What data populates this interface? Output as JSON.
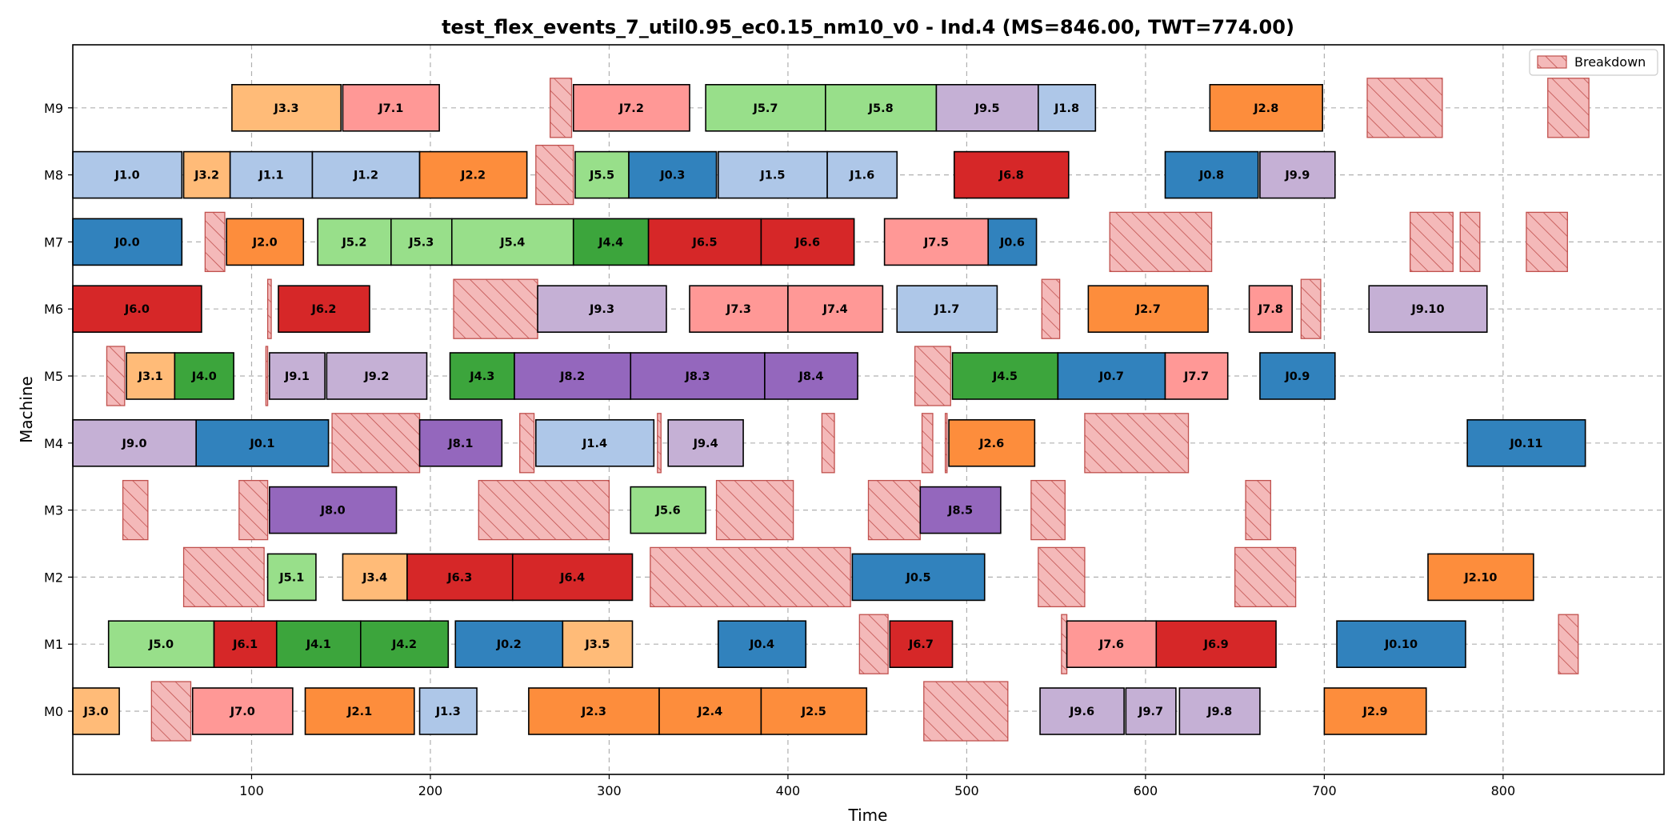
{
  "chart_data": {
    "type": "gantt",
    "title": "test_flex_events_7_util0.95_ec0.15_nm10_v0 - Ind.4 (MS=846.00, TWT=774.00)",
    "xlabel": "Time",
    "ylabel": "Machine",
    "xlim": [
      0,
      890
    ],
    "x_ticks": [
      100,
      200,
      300,
      400,
      500,
      600,
      700,
      800
    ],
    "machines": [
      "M0",
      "M1",
      "M2",
      "M3",
      "M4",
      "M5",
      "M6",
      "M7",
      "M8",
      "M9"
    ],
    "grid": true,
    "legend": {
      "position": "upper-right",
      "entries": [
        "Breakdown"
      ]
    },
    "job_colors": {
      "J0": "#3182bd",
      "J1": "#aec7e8",
      "J2": "#fd8d3c",
      "J3": "#ffbb78",
      "J4": "#3ca53c",
      "J5": "#98df8a",
      "J6": "#d62728",
      "J7": "#ff9896",
      "J8": "#9467bd",
      "J9": "#c5b0d5"
    },
    "breakdown_color": "#f4b9b9",
    "breakdown_edge": "#c0504d",
    "operations": [
      {
        "m": 0,
        "label": "J3.0",
        "start": 0,
        "end": 26
      },
      {
        "m": 0,
        "label": "J7.0",
        "start": 67,
        "end": 123
      },
      {
        "m": 0,
        "label": "J2.1",
        "start": 130,
        "end": 191
      },
      {
        "m": 0,
        "label": "J1.3",
        "start": 194,
        "end": 226
      },
      {
        "m": 0,
        "label": "J2.3",
        "start": 255,
        "end": 328
      },
      {
        "m": 0,
        "label": "J2.4",
        "start": 328,
        "end": 385
      },
      {
        "m": 0,
        "label": "J2.5",
        "start": 385,
        "end": 444
      },
      {
        "m": 0,
        "label": "J9.6",
        "start": 541,
        "end": 588
      },
      {
        "m": 0,
        "label": "J9.7",
        "start": 589,
        "end": 617
      },
      {
        "m": 0,
        "label": "J9.8",
        "start": 619,
        "end": 664
      },
      {
        "m": 0,
        "label": "J2.9",
        "start": 700,
        "end": 757
      },
      {
        "m": 1,
        "label": "J5.0",
        "start": 20,
        "end": 79
      },
      {
        "m": 1,
        "label": "J6.1",
        "start": 79,
        "end": 114
      },
      {
        "m": 1,
        "label": "J4.1",
        "start": 114,
        "end": 161
      },
      {
        "m": 1,
        "label": "J4.2",
        "start": 161,
        "end": 210
      },
      {
        "m": 1,
        "label": "J0.2",
        "start": 214,
        "end": 274
      },
      {
        "m": 1,
        "label": "J3.5",
        "start": 274,
        "end": 313
      },
      {
        "m": 1,
        "label": "J0.4",
        "start": 361,
        "end": 410
      },
      {
        "m": 1,
        "label": "J6.7",
        "start": 457,
        "end": 492
      },
      {
        "m": 1,
        "label": "J7.6",
        "start": 556,
        "end": 606
      },
      {
        "m": 1,
        "label": "J6.9",
        "start": 606,
        "end": 673
      },
      {
        "m": 1,
        "label": "J0.10",
        "start": 707,
        "end": 779
      },
      {
        "m": 2,
        "label": "J5.1",
        "start": 109,
        "end": 136
      },
      {
        "m": 2,
        "label": "J3.4",
        "start": 151,
        "end": 187
      },
      {
        "m": 2,
        "label": "J6.3",
        "start": 187,
        "end": 246
      },
      {
        "m": 2,
        "label": "J6.4",
        "start": 246,
        "end": 313
      },
      {
        "m": 2,
        "label": "J0.5",
        "start": 436,
        "end": 510
      },
      {
        "m": 2,
        "label": "J2.10",
        "start": 758,
        "end": 817
      },
      {
        "m": 3,
        "label": "J8.0",
        "start": 110,
        "end": 181
      },
      {
        "m": 3,
        "label": "J5.6",
        "start": 312,
        "end": 354
      },
      {
        "m": 3,
        "label": "J8.5",
        "start": 474,
        "end": 519
      },
      {
        "m": 4,
        "label": "J9.0",
        "start": 0,
        "end": 69
      },
      {
        "m": 4,
        "label": "J0.1",
        "start": 69,
        "end": 143
      },
      {
        "m": 4,
        "label": "J8.1",
        "start": 194,
        "end": 240
      },
      {
        "m": 4,
        "label": "J1.4",
        "start": 259,
        "end": 325
      },
      {
        "m": 4,
        "label": "J9.4",
        "start": 333,
        "end": 375
      },
      {
        "m": 4,
        "label": "J2.6",
        "start": 490,
        "end": 538
      },
      {
        "m": 4,
        "label": "J0.11",
        "start": 780,
        "end": 846
      },
      {
        "m": 5,
        "label": "J3.1",
        "start": 30,
        "end": 57
      },
      {
        "m": 5,
        "label": "J4.0",
        "start": 57,
        "end": 90
      },
      {
        "m": 5,
        "label": "J9.1",
        "start": 110,
        "end": 141
      },
      {
        "m": 5,
        "label": "J9.2",
        "start": 142,
        "end": 198
      },
      {
        "m": 5,
        "label": "J4.3",
        "start": 211,
        "end": 247
      },
      {
        "m": 5,
        "label": "J8.2",
        "start": 247,
        "end": 312
      },
      {
        "m": 5,
        "label": "J8.3",
        "start": 312,
        "end": 387
      },
      {
        "m": 5,
        "label": "J8.4",
        "start": 387,
        "end": 439
      },
      {
        "m": 5,
        "label": "J4.5",
        "start": 492,
        "end": 551
      },
      {
        "m": 5,
        "label": "J0.7",
        "start": 551,
        "end": 611
      },
      {
        "m": 5,
        "label": "J7.7",
        "start": 611,
        "end": 646
      },
      {
        "m": 5,
        "label": "J0.9",
        "start": 664,
        "end": 706
      },
      {
        "m": 6,
        "label": "J6.0",
        "start": 0,
        "end": 72
      },
      {
        "m": 6,
        "label": "J6.2",
        "start": 115,
        "end": 166
      },
      {
        "m": 6,
        "label": "J9.3",
        "start": 260,
        "end": 332
      },
      {
        "m": 6,
        "label": "J7.3",
        "start": 345,
        "end": 400
      },
      {
        "m": 6,
        "label": "J7.4",
        "start": 400,
        "end": 453
      },
      {
        "m": 6,
        "label": "J1.7",
        "start": 461,
        "end": 517
      },
      {
        "m": 6,
        "label": "J2.7",
        "start": 568,
        "end": 635
      },
      {
        "m": 6,
        "label": "J7.8",
        "start": 658,
        "end": 682
      },
      {
        "m": 6,
        "label": "J9.10",
        "start": 725,
        "end": 791
      },
      {
        "m": 7,
        "label": "J0.0",
        "start": 0,
        "end": 61
      },
      {
        "m": 7,
        "label": "J2.0",
        "start": 86,
        "end": 129
      },
      {
        "m": 7,
        "label": "J5.2",
        "start": 137,
        "end": 178
      },
      {
        "m": 7,
        "label": "J5.3",
        "start": 178,
        "end": 212
      },
      {
        "m": 7,
        "label": "J5.4",
        "start": 212,
        "end": 280
      },
      {
        "m": 7,
        "label": "J4.4",
        "start": 280,
        "end": 322
      },
      {
        "m": 7,
        "label": "J6.5",
        "start": 322,
        "end": 385
      },
      {
        "m": 7,
        "label": "J6.6",
        "start": 385,
        "end": 437
      },
      {
        "m": 7,
        "label": "J7.5",
        "start": 454,
        "end": 512
      },
      {
        "m": 7,
        "label": "J0.6",
        "start": 512,
        "end": 539
      },
      {
        "m": 8,
        "label": "J1.0",
        "start": 0,
        "end": 61
      },
      {
        "m": 8,
        "label": "J3.2",
        "start": 62,
        "end": 88
      },
      {
        "m": 8,
        "label": "J1.1",
        "start": 88,
        "end": 134
      },
      {
        "m": 8,
        "label": "J1.2",
        "start": 134,
        "end": 194
      },
      {
        "m": 8,
        "label": "J2.2",
        "start": 194,
        "end": 254
      },
      {
        "m": 8,
        "label": "J5.5",
        "start": 281,
        "end": 311
      },
      {
        "m": 8,
        "label": "J0.3",
        "start": 311,
        "end": 360
      },
      {
        "m": 8,
        "label": "J1.5",
        "start": 361,
        "end": 422
      },
      {
        "m": 8,
        "label": "J1.6",
        "start": 422,
        "end": 461
      },
      {
        "m": 8,
        "label": "J6.8",
        "start": 493,
        "end": 557
      },
      {
        "m": 8,
        "label": "J0.8",
        "start": 611,
        "end": 663
      },
      {
        "m": 8,
        "label": "J9.9",
        "start": 664,
        "end": 706
      },
      {
        "m": 9,
        "label": "J3.3",
        "start": 89,
        "end": 150
      },
      {
        "m": 9,
        "label": "J7.1",
        "start": 151,
        "end": 205
      },
      {
        "m": 9,
        "label": "J7.2",
        "start": 280,
        "end": 345
      },
      {
        "m": 9,
        "label": "J5.7",
        "start": 354,
        "end": 421
      },
      {
        "m": 9,
        "label": "J5.8",
        "start": 421,
        "end": 483
      },
      {
        "m": 9,
        "label": "J9.5",
        "start": 483,
        "end": 540
      },
      {
        "m": 9,
        "label": "J1.8",
        "start": 540,
        "end": 572
      },
      {
        "m": 9,
        "label": "J2.8",
        "start": 636,
        "end": 699
      }
    ],
    "breakdowns": [
      {
        "m": 0,
        "start": 44,
        "end": 66
      },
      {
        "m": 0,
        "start": 476,
        "end": 523
      },
      {
        "m": 1,
        "start": 440,
        "end": 456
      },
      {
        "m": 1,
        "start": 553,
        "end": 556
      },
      {
        "m": 1,
        "start": 831,
        "end": 842
      },
      {
        "m": 2,
        "start": 62,
        "end": 107
      },
      {
        "m": 2,
        "start": 323,
        "end": 435
      },
      {
        "m": 2,
        "start": 540,
        "end": 566
      },
      {
        "m": 2,
        "start": 650,
        "end": 684
      },
      {
        "m": 3,
        "start": 28,
        "end": 42
      },
      {
        "m": 3,
        "start": 93,
        "end": 109
      },
      {
        "m": 3,
        "start": 227,
        "end": 300
      },
      {
        "m": 3,
        "start": 360,
        "end": 403
      },
      {
        "m": 3,
        "start": 445,
        "end": 474
      },
      {
        "m": 3,
        "start": 536,
        "end": 555
      },
      {
        "m": 3,
        "start": 656,
        "end": 670
      },
      {
        "m": 4,
        "start": 145,
        "end": 194
      },
      {
        "m": 4,
        "start": 250,
        "end": 258
      },
      {
        "m": 4,
        "start": 327,
        "end": 329
      },
      {
        "m": 4,
        "start": 419,
        "end": 426
      },
      {
        "m": 4,
        "start": 475,
        "end": 481
      },
      {
        "m": 4,
        "start": 488,
        "end": 489
      },
      {
        "m": 4,
        "start": 566,
        "end": 624
      },
      {
        "m": 5,
        "start": 19,
        "end": 29
      },
      {
        "m": 5,
        "start": 108,
        "end": 109
      },
      {
        "m": 5,
        "start": 471,
        "end": 491
      },
      {
        "m": 6,
        "start": 109,
        "end": 111
      },
      {
        "m": 6,
        "start": 213,
        "end": 260
      },
      {
        "m": 6,
        "start": 542,
        "end": 552
      },
      {
        "m": 6,
        "start": 687,
        "end": 698
      },
      {
        "m": 7,
        "start": 74,
        "end": 85
      },
      {
        "m": 7,
        "start": 580,
        "end": 637
      },
      {
        "m": 7,
        "start": 748,
        "end": 772
      },
      {
        "m": 7,
        "start": 776,
        "end": 787
      },
      {
        "m": 7,
        "start": 813,
        "end": 836
      },
      {
        "m": 8,
        "start": 259,
        "end": 280
      },
      {
        "m": 9,
        "start": 267,
        "end": 279
      },
      {
        "m": 9,
        "start": 724,
        "end": 766
      },
      {
        "m": 9,
        "start": 825,
        "end": 848
      }
    ]
  }
}
